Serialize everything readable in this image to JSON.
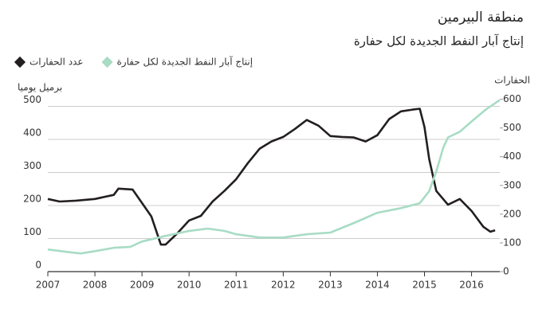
{
  "chart_data": {
    "type": "line",
    "title": "منطقة البيرمين",
    "subtitle": "إنتاج آبار النفط الجديدة لكل حفارة",
    "y_label": "برميل يوميا",
    "y2_label": "الحفارات",
    "legend": "top-left",
    "grid": true,
    "xlim": [
      2007,
      2016.6
    ],
    "xticks": [
      2007,
      2008,
      2009,
      2010,
      2011,
      2012,
      2013,
      2014,
      2015,
      2016
    ],
    "ylim": [
      0,
      530
    ],
    "yticks": [
      0,
      100,
      200,
      300,
      400,
      500
    ],
    "y2lim": [
      0,
      610
    ],
    "y2ticks": [
      0,
      100,
      200,
      300,
      400,
      500,
      600
    ],
    "series": [
      {
        "name": "عدد الحفارات",
        "color": "#231f20",
        "axis": "y2",
        "marker": "diamond",
        "x": [
          2007,
          2007.25,
          2007.6,
          2008,
          2008.4,
          2008.5,
          2008.8,
          2009,
          2009.2,
          2009.4,
          2009.5,
          2009.75,
          2010,
          2010.25,
          2010.5,
          2010.75,
          2011,
          2011.25,
          2011.5,
          2011.75,
          2012,
          2012.25,
          2012.5,
          2012.75,
          2013,
          2013.25,
          2013.5,
          2013.75,
          2014,
          2014.25,
          2014.5,
          2014.75,
          2014.9,
          2015,
          2015.1,
          2015.25,
          2015.5,
          2015.75,
          2016,
          2016.25,
          2016.4,
          2016.5
        ],
        "values": [
          253,
          244,
          247,
          253,
          267,
          289,
          286,
          239,
          192,
          94,
          94,
          133,
          178,
          194,
          244,
          281,
          322,
          378,
          428,
          453,
          469,
          497,
          528,
          508,
          472,
          469,
          467,
          453,
          475,
          531,
          558,
          564,
          567,
          503,
          392,
          281,
          233,
          253,
          211,
          156,
          139,
          144
        ]
      },
      {
        "name": "إنتاج آبار النفط الجديدة لكل حفارة",
        "color": "#a8dcc4",
        "axis": "y",
        "marker": "diamond",
        "x": [
          2007,
          2007.5,
          2007.7,
          2008,
          2008.4,
          2008.75,
          2009,
          2009.5,
          2010,
          2010.4,
          2010.75,
          2011,
          2011.5,
          2012,
          2012.5,
          2013,
          2013.5,
          2014,
          2014.5,
          2014.9,
          2015.1,
          2015.25,
          2015.4,
          2015.5,
          2015.75,
          2016,
          2016.3,
          2016.6
        ],
        "values": [
          67,
          58,
          55,
          62,
          72,
          75,
          91,
          108,
          123,
          130,
          123,
          113,
          103,
          103,
          113,
          118,
          147,
          178,
          192,
          207,
          243,
          303,
          375,
          406,
          423,
          454,
          490,
          519
        ]
      }
    ]
  }
}
